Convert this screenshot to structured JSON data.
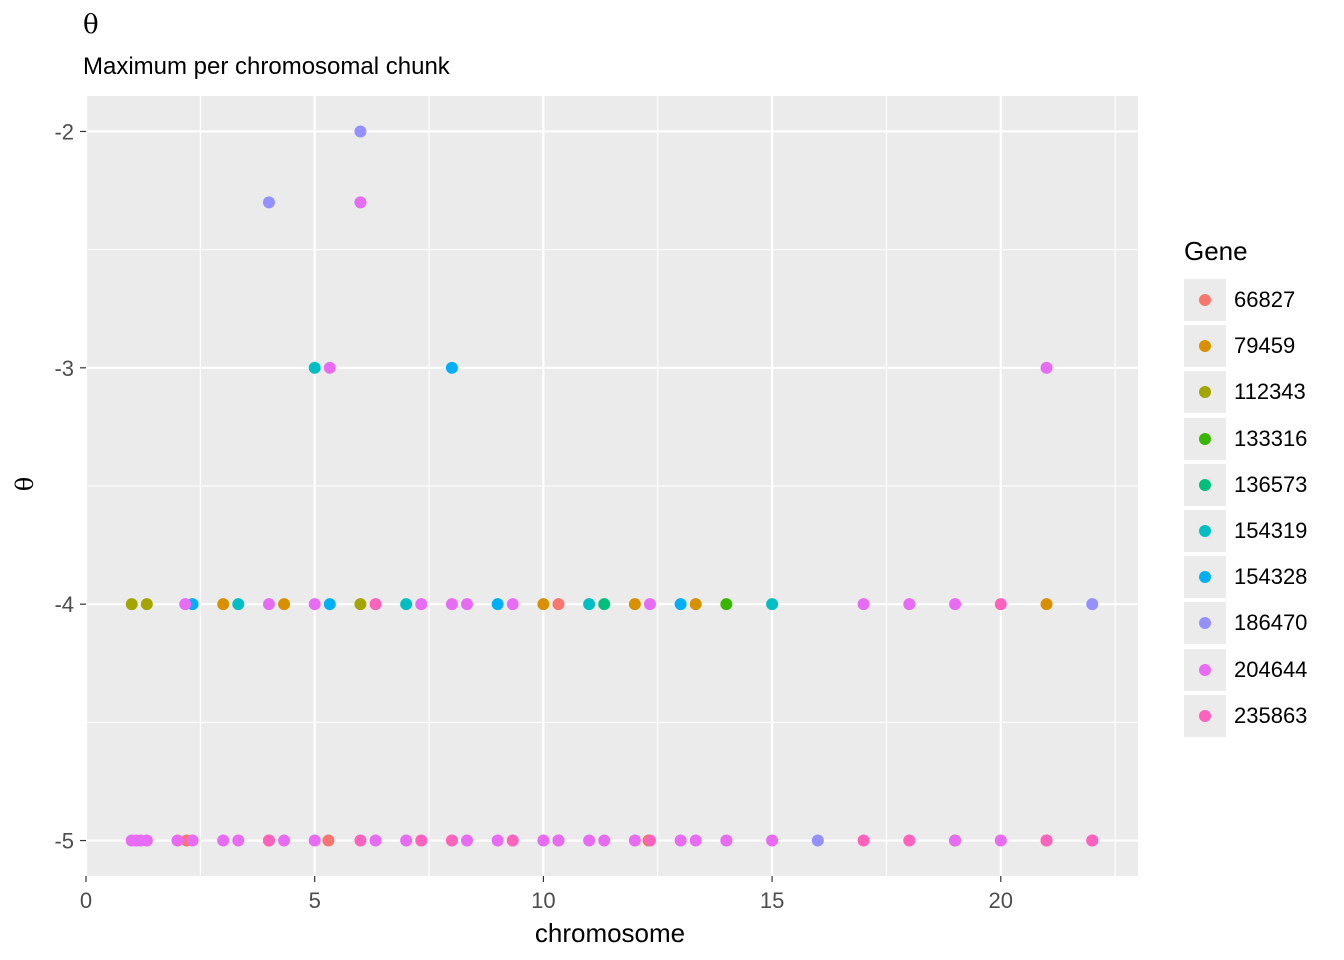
{
  "chart_data": {
    "type": "scatter",
    "title": "θ",
    "subtitle": "Maximum per chromosomal chunk",
    "xlabel": "chromosome",
    "ylabel": "θ",
    "xlim": [
      0,
      23
    ],
    "ylim": [
      -5.15,
      -1.85
    ],
    "x_ticks": [
      0,
      5,
      10,
      15,
      20
    ],
    "y_ticks": [
      -2,
      -3,
      -4,
      -5
    ],
    "y_tick_labels": [
      "-2",
      "-3",
      "-4",
      "-5"
    ],
    "grid": true,
    "legend": {
      "title": "Gene",
      "position": "right"
    },
    "series": [
      {
        "name": "66827",
        "color": "#F8766D",
        "points": [
          [
            2.2,
            -5
          ],
          [
            5.3,
            -5
          ],
          [
            10.33,
            -4
          ],
          [
            10.33,
            -5
          ],
          [
            21,
            -5
          ]
        ]
      },
      {
        "name": "79459",
        "color": "#D89000",
        "points": [
          [
            3,
            -4
          ],
          [
            4.33,
            -4
          ],
          [
            10,
            -4
          ],
          [
            12,
            -4
          ],
          [
            13.33,
            -4
          ],
          [
            21,
            -4
          ],
          [
            4,
            -5
          ],
          [
            12.3,
            -5
          ]
        ]
      },
      {
        "name": "112343",
        "color": "#A3A500",
        "points": [
          [
            1,
            -4
          ],
          [
            1.33,
            -4
          ],
          [
            6,
            -4
          ],
          [
            19,
            -5
          ]
        ]
      },
      {
        "name": "133316",
        "color": "#39B600",
        "points": [
          [
            14,
            -4
          ]
        ]
      },
      {
        "name": "136573",
        "color": "#00BF7D",
        "points": [
          [
            11.33,
            -4
          ]
        ]
      },
      {
        "name": "154319",
        "color": "#00BFC4",
        "points": [
          [
            5,
            -3
          ],
          [
            3.33,
            -4
          ],
          [
            7,
            -4
          ],
          [
            11,
            -4
          ],
          [
            15,
            -4
          ]
        ]
      },
      {
        "name": "154328",
        "color": "#00B0F6",
        "points": [
          [
            8,
            -3
          ],
          [
            2.33,
            -4
          ],
          [
            5.33,
            -4
          ],
          [
            9,
            -4
          ],
          [
            13,
            -4
          ]
        ]
      },
      {
        "name": "186470",
        "color": "#9590FF",
        "points": [
          [
            6,
            -2
          ],
          [
            4,
            -2.3
          ],
          [
            22,
            -4
          ],
          [
            16,
            -5
          ]
        ]
      },
      {
        "name": "204644",
        "color": "#E76BF3",
        "points": [
          [
            6,
            -2.3
          ],
          [
            5.33,
            -3
          ],
          [
            21,
            -3
          ],
          [
            2.17,
            -4
          ],
          [
            4,
            -4
          ],
          [
            5,
            -4
          ],
          [
            7.33,
            -4
          ],
          [
            8,
            -4
          ],
          [
            8.33,
            -4
          ],
          [
            9.33,
            -4
          ],
          [
            12.33,
            -4
          ],
          [
            17,
            -4
          ],
          [
            18,
            -4
          ],
          [
            19,
            -4
          ],
          [
            1,
            -5
          ],
          [
            1.1,
            -5
          ],
          [
            1.2,
            -5
          ],
          [
            1.33,
            -5
          ],
          [
            2,
            -5
          ],
          [
            2.33,
            -5
          ],
          [
            3,
            -5
          ],
          [
            3.33,
            -5
          ],
          [
            4.33,
            -5
          ],
          [
            5,
            -5
          ],
          [
            6.33,
            -5
          ],
          [
            7,
            -5
          ],
          [
            8.33,
            -5
          ],
          [
            9,
            -5
          ],
          [
            10,
            -5
          ],
          [
            10.33,
            -5
          ],
          [
            11,
            -5
          ],
          [
            11.33,
            -5
          ],
          [
            12,
            -5
          ],
          [
            13,
            -5
          ],
          [
            13.33,
            -5
          ],
          [
            14,
            -5
          ],
          [
            15,
            -5
          ],
          [
            19,
            -5
          ],
          [
            20,
            -5
          ],
          [
            22,
            -5
          ]
        ]
      },
      {
        "name": "235863",
        "color": "#FF62BC",
        "points": [
          [
            6.33,
            -4
          ],
          [
            20,
            -4
          ],
          [
            4,
            -5
          ],
          [
            6,
            -5
          ],
          [
            7.33,
            -5
          ],
          [
            8,
            -5
          ],
          [
            9.33,
            -5
          ],
          [
            12.33,
            -5
          ],
          [
            17,
            -5
          ],
          [
            18,
            -5
          ],
          [
            21,
            -5
          ],
          [
            22,
            -5
          ]
        ]
      }
    ]
  }
}
